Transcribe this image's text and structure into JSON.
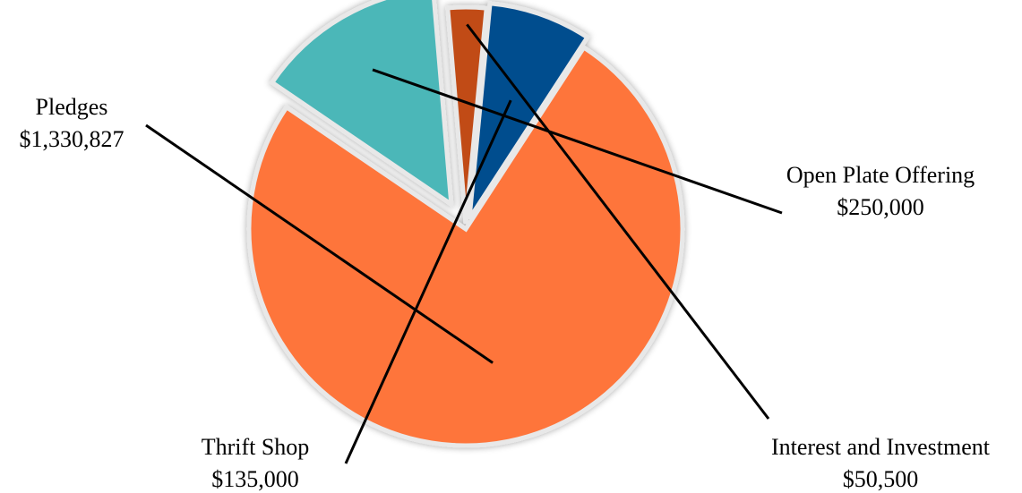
{
  "chart_data": {
    "type": "pie",
    "exploded": true,
    "legend": "none",
    "slices": [
      {
        "label": "Pledges",
        "value": 1330827,
        "value_label": "$1,330,827",
        "color": "#fe743a"
      },
      {
        "label": "Open Plate Offering",
        "value": 250000,
        "value_label": "$250,000",
        "color": "#4bb7b8"
      },
      {
        "label": "Interest and Investment",
        "value": 50500,
        "value_label": "$50,500",
        "color": "#c14b17"
      },
      {
        "label": "Thrift Shop",
        "value": 135000,
        "value_label": "$135,000",
        "color": "#014d8e"
      }
    ]
  }
}
